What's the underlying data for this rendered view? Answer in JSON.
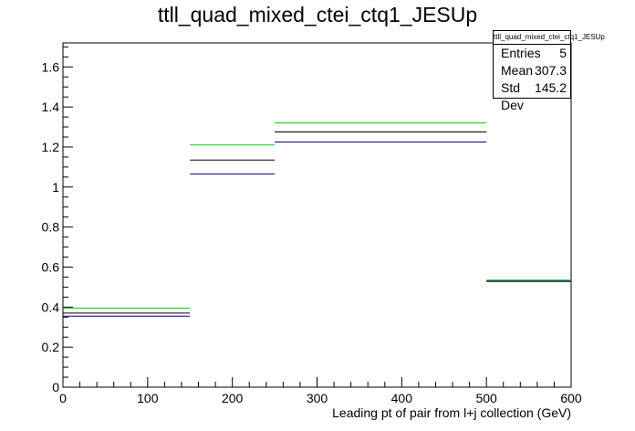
{
  "chart_data": {
    "type": "line",
    "title": "ttll_quad_mixed_ctei_ctq1_JESUp",
    "xlabel": "Leading pt of pair from l+j collection (GeV)",
    "ylabel": "",
    "xlim": [
      0,
      600
    ],
    "ylim": [
      0,
      1.72
    ],
    "xticks": [
      "0",
      "100",
      "200",
      "300",
      "400",
      "500",
      "600"
    ],
    "yticks": [
      "0",
      "0.2",
      "0.4",
      "0.6",
      "0.8",
      "1",
      "1.2",
      "1.4",
      "1.6"
    ],
    "bin_edges": [
      0,
      150,
      250,
      500,
      600
    ],
    "series": [
      {
        "color": "#00cc00",
        "values": [
          0.395,
          1.21,
          1.32,
          0.535
        ]
      },
      {
        "color": "#000000",
        "values": [
          0.37,
          1.135,
          1.275,
          0.53
        ]
      },
      {
        "color": "#000080",
        "values": [
          0.355,
          1.065,
          1.225,
          0.528
        ]
      }
    ],
    "grid": false,
    "legend_placement": "top-right"
  },
  "stats": {
    "title": "ttll_quad_mixed_ctei_ctq1_JESUp",
    "rows": [
      {
        "label": "Entries",
        "value": "5"
      },
      {
        "label": "Mean",
        "value": "307.3"
      },
      {
        "label": "Std Dev",
        "value": "145.2"
      }
    ]
  }
}
